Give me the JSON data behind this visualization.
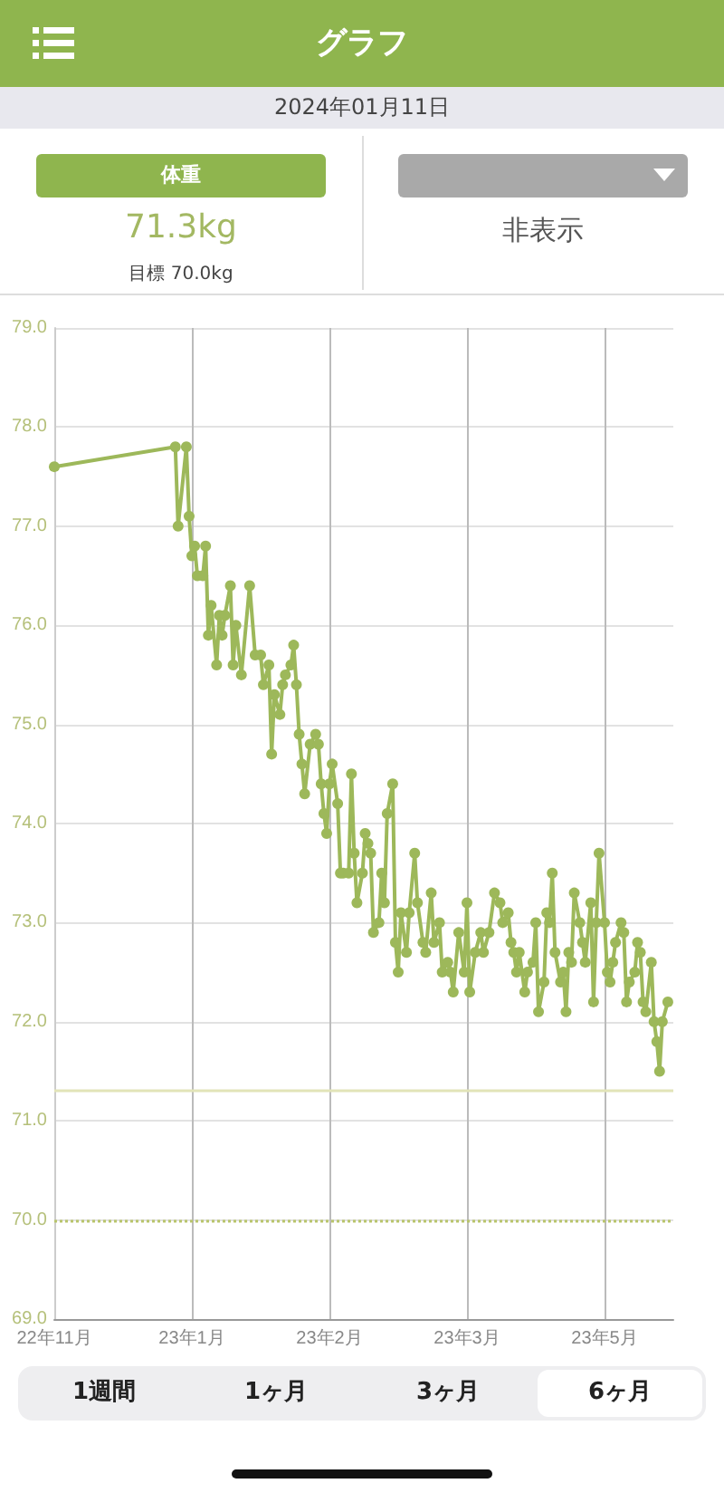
{
  "chart_data": {
    "type": "line",
    "title": "グラフ",
    "subtitle": "2024年01月11日",
    "annotations": [
      "体重",
      "71.3kg",
      "目標 70.0kg",
      "非表示",
      "1週間",
      "1ヶ月",
      "3ヶ月",
      "6ヶ月"
    ],
    "categories": [
      "22年11月",
      null,
      null,
      null,
      null,
      null,
      null,
      null,
      null,
      null,
      null,
      null,
      null,
      null,
      null,
      null,
      null,
      null,
      null,
      null,
      null,
      null,
      null,
      null,
      null,
      null,
      null,
      null,
      null,
      null,
      null,
      null,
      null,
      null,
      null,
      null,
      null,
      null,
      null,
      null,
      null,
      null,
      null,
      null,
      null,
      null,
      null,
      null,
      null,
      null,
      "23年1月",
      null,
      null,
      null,
      null,
      null,
      null,
      null,
      null,
      null,
      null,
      null,
      null,
      null,
      null,
      null,
      null,
      null,
      null,
      null,
      null,
      null,
      null,
      null,
      null,
      null,
      null,
      null,
      null,
      null,
      null,
      null,
      null,
      null,
      null,
      null,
      null,
      null,
      null,
      null,
      null,
      null,
      null,
      null,
      null,
      null,
      null,
      null,
      null,
      null,
      "23年2月",
      null,
      null,
      null,
      null,
      null,
      null,
      null,
      null,
      null,
      null,
      null,
      null,
      null,
      null,
      null,
      null,
      null,
      null,
      null,
      null,
      null,
      null,
      null,
      null,
      null,
      null,
      null,
      null,
      null,
      null,
      null,
      null,
      null,
      null,
      null,
      null,
      null,
      null,
      null,
      null,
      null,
      null,
      null,
      null,
      null,
      null,
      null,
      null,
      null,
      "23年3月",
      null,
      null,
      null,
      null,
      null,
      null,
      null,
      null,
      null,
      null,
      null,
      null,
      null,
      null,
      null,
      null,
      null,
      null,
      null,
      null,
      null,
      null,
      null,
      null,
      null,
      null,
      null,
      null,
      null,
      null,
      null,
      null,
      null,
      null,
      null,
      null,
      null,
      null,
      null,
      null,
      null,
      null,
      null,
      null,
      null,
      null,
      null,
      null,
      null,
      "23年5月",
      null,
      null,
      null,
      null,
      null,
      null,
      null,
      null,
      null,
      null,
      null,
      null,
      null,
      null,
      null,
      null,
      null,
      null,
      null,
      null,
      null,
      null,
      null,
      null,
      null
    ],
    "series": [
      {
        "color": "#9db85a",
        "values": [
          77.6,
          null,
          null,
          null,
          null,
          null,
          null,
          null,
          null,
          null,
          null,
          null,
          null,
          null,
          null,
          null,
          null,
          null,
          null,
          null,
          null,
          null,
          null,
          null,
          null,
          null,
          null,
          null,
          null,
          null,
          null,
          null,
          null,
          null,
          null,
          null,
          null,
          null,
          null,
          null,
          null,
          null,
          null,
          null,
          77.8,
          77.0,
          null,
          null,
          77.8,
          77.1,
          76.7,
          76.8,
          76.5,
          null,
          76.5,
          76.8,
          75.9,
          76.2,
          null,
          75.6,
          76.1,
          75.9,
          76.1,
          null,
          76.4,
          75.6,
          76.0,
          null,
          75.5,
          null,
          null,
          76.4,
          null,
          75.7,
          null,
          75.7,
          75.4,
          null,
          75.6,
          74.7,
          75.3,
          null,
          75.1,
          75.4,
          75.5,
          null,
          75.6,
          75.8,
          75.4,
          74.9,
          74.6,
          74.3,
          null,
          74.8,
          null,
          74.9,
          74.8,
          74.4,
          74.1,
          73.9,
          74.4,
          74.6,
          null,
          74.2,
          73.5,
          73.5,
          null,
          73.5,
          74.5,
          73.7,
          73.2,
          null,
          73.5,
          73.9,
          73.8,
          73.7,
          72.9,
          null,
          73.0,
          73.5,
          73.2,
          74.1,
          null,
          74.4,
          72.8,
          72.5,
          73.1,
          null,
          72.7,
          73.1,
          null,
          73.7,
          73.2,
          null,
          72.8,
          72.7,
          null,
          73.3,
          72.8,
          null,
          73.0,
          72.5,
          null,
          72.6,
          72.5,
          72.3,
          null,
          72.9,
          null,
          72.5,
          73.2,
          72.3,
          null,
          72.7,
          null,
          72.9,
          72.7,
          null,
          72.9,
          null,
          73.3,
          null,
          73.2,
          73.0,
          null,
          73.1,
          72.8,
          72.7,
          72.5,
          72.7,
          null,
          72.3,
          72.5,
          null,
          72.6,
          73.0,
          72.1,
          null,
          72.4,
          73.1,
          73.0,
          73.5,
          72.7,
          null,
          72.4,
          72.5,
          72.1,
          72.7,
          72.6,
          73.3,
          null,
          73.0,
          72.8,
          72.6,
          null,
          73.2,
          72.2,
          73.0,
          73.7,
          null,
          73.0,
          72.5,
          72.4,
          72.6,
          72.8,
          null,
          73.0,
          72.9,
          72.2,
          72.4,
          null,
          72.5,
          72.8,
          72.7,
          72.2,
          72.1,
          null,
          72.6,
          72.0,
          71.8,
          71.5,
          72.0,
          null,
          72.2,
          null,
          null
        ]
      }
    ],
    "ylim": [
      69,
      79
    ],
    "yticks": [
      {
        "value": 69,
        "label": "69.0"
      },
      {
        "value": 70,
        "label": "70.0"
      },
      {
        "value": 71,
        "label": "71.0"
      },
      {
        "value": 72,
        "label": "72.0"
      },
      {
        "value": 73,
        "label": "73.0"
      },
      {
        "value": 74,
        "label": "74.0"
      },
      {
        "value": 75,
        "label": "75.0"
      },
      {
        "value": 76,
        "label": "76.0"
      },
      {
        "value": 77,
        "label": "77.0"
      },
      {
        "value": 78,
        "label": "78.0"
      },
      {
        "value": 79,
        "label": "79.0"
      }
    ],
    "ref_lines": [
      {
        "axis": "y",
        "value": 70,
        "color": "#b8c46a",
        "line_style": "dotted"
      },
      {
        "axis": "y",
        "value": 71.3,
        "color": "#e2e4b8",
        "line_style": "solid"
      }
    ],
    "grid": true,
    "marker": "circle",
    "line_style": "solid"
  }
}
